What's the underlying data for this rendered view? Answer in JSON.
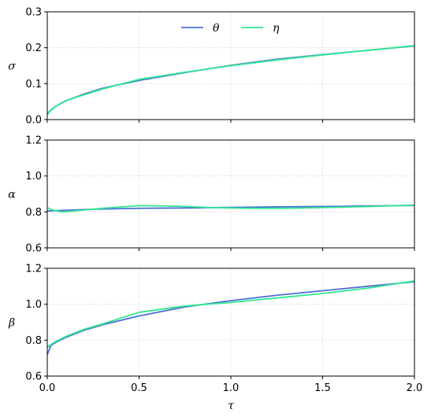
{
  "chart_data": {
    "type": "line",
    "shared_x": {
      "label": "τ",
      "xlim": [
        0,
        2.0
      ],
      "ticks": [
        "0.0",
        "0.5",
        "1.0",
        "1.5",
        "2.0"
      ],
      "tick_values": [
        0,
        0.5,
        1.0,
        1.5,
        2.0
      ]
    },
    "grid": true,
    "legend": {
      "placement": "top-center",
      "entries": [
        {
          "name": "θ",
          "color": "#4a6fd8"
        },
        {
          "name": "η",
          "color": "#2ee98f"
        }
      ]
    },
    "panels": [
      {
        "ylabel": "σ",
        "ylim": [
          0,
          0.3
        ],
        "yticks": [
          "0.0",
          "0.1",
          "0.2",
          "0.3"
        ],
        "ytick_values": [
          0,
          0.1,
          0.2,
          0.3
        ],
        "series": [
          {
            "name": "θ",
            "color": "#4a6fd8",
            "x": [
              0,
              0.01,
              0.03,
              0.05,
              0.1,
              0.2,
              0.3,
              0.5,
              0.75,
              1.0,
              1.25,
              1.5,
              1.75,
              2.0
            ],
            "y": [
              0.015,
              0.022,
              0.031,
              0.038,
              0.052,
              0.071,
              0.087,
              0.109,
              0.131,
              0.151,
              0.168,
              0.181,
              0.193,
              0.205
            ]
          },
          {
            "name": "η",
            "color": "#2ee98f",
            "x": [
              0,
              0.01,
              0.03,
              0.05,
              0.1,
              0.2,
              0.3,
              0.5,
              0.75,
              1.0,
              1.25,
              1.5,
              1.75,
              2.0
            ],
            "y": [
              0.013,
              0.021,
              0.03,
              0.038,
              0.053,
              0.069,
              0.085,
              0.112,
              0.132,
              0.15,
              0.166,
              0.18,
              0.193,
              0.206
            ]
          }
        ]
      },
      {
        "ylabel": "α",
        "ylim": [
          0.6,
          1.2
        ],
        "yticks": [
          "0.6",
          "0.8",
          "1.0",
          "1.2"
        ],
        "ytick_values": [
          0.6,
          0.8,
          1.0,
          1.2
        ],
        "series": [
          {
            "name": "θ",
            "color": "#4a6fd8",
            "x": [
              0,
              0.25,
              0.5,
              0.75,
              1.0,
              1.25,
              1.5,
              1.75,
              2.0
            ],
            "y": [
              0.805,
              0.815,
              0.82,
              0.822,
              0.825,
              0.828,
              0.83,
              0.833,
              0.836
            ]
          },
          {
            "name": "η",
            "color": "#2ee98f",
            "x": [
              0,
              0.03,
              0.08,
              0.15,
              0.3,
              0.5,
              0.7,
              0.9,
              1.1,
              1.3,
              1.5,
              1.75,
              2.0
            ],
            "y": [
              0.823,
              0.81,
              0.8,
              0.806,
              0.82,
              0.835,
              0.832,
              0.824,
              0.82,
              0.82,
              0.824,
              0.83,
              0.838
            ]
          }
        ]
      },
      {
        "ylabel": "β",
        "ylim": [
          0.6,
          1.2
        ],
        "yticks": [
          "0.6",
          "0.8",
          "1.0",
          "1.2"
        ],
        "ytick_values": [
          0.6,
          0.8,
          1.0,
          1.2
        ],
        "series": [
          {
            "name": "θ",
            "color": "#4a6fd8",
            "x": [
              0,
              0.02,
              0.05,
              0.1,
              0.2,
              0.3,
              0.5,
              0.75,
              1.0,
              1.25,
              1.5,
              1.75,
              2.0
            ],
            "y": [
              0.72,
              0.77,
              0.79,
              0.815,
              0.855,
              0.885,
              0.935,
              0.985,
              1.02,
              1.05,
              1.075,
              1.1,
              1.125
            ]
          },
          {
            "name": "η",
            "color": "#2ee98f",
            "x": [
              0,
              0.02,
              0.05,
              0.1,
              0.2,
              0.3,
              0.5,
              0.75,
              1.0,
              1.25,
              1.5,
              1.75,
              2.0
            ],
            "y": [
              0.76,
              0.775,
              0.795,
              0.82,
              0.86,
              0.89,
              0.955,
              0.99,
              1.01,
              1.035,
              1.06,
              1.09,
              1.13
            ]
          }
        ]
      }
    ]
  }
}
